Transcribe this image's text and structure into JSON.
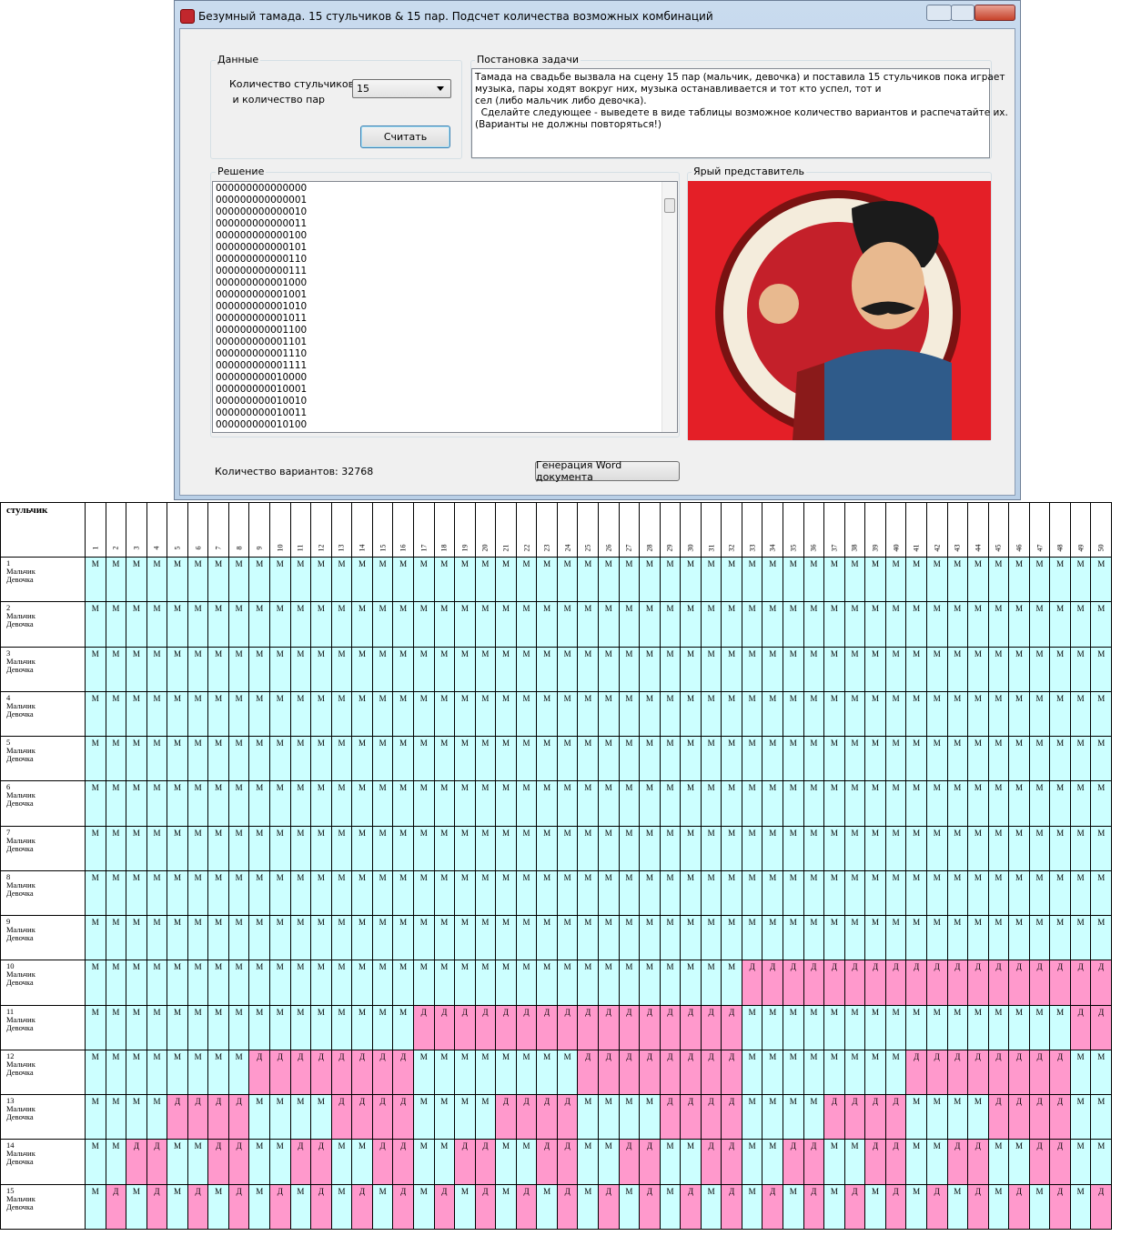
{
  "window": {
    "title": "Безумный тамада. 15 стульчиков & 15 пар. Подсчет количества возможных комбинаций",
    "data_group": {
      "title": "Данные",
      "label_lines": [
        "Количество стульчиков",
        " и количество пар"
      ],
      "combo_value": "15",
      "button": "Считать"
    },
    "task_group": {
      "title": "Постановка задачи",
      "lines": [
        "Тамада на свадьбе вызвала на сцену 15 пар (мальчик, девочка) и поставила 15 стульчиков пока играет",
        "музыка, пары ходят вокруг них, музыка останавливается и тот кто успел, тот и",
        "сел (либо мальчик либо девочка).",
        "  Сделайте следующее - выведете в виде таблицы возможное количество вариантов и распечатайте их.",
        "(Варианты не должны повторяться!)"
      ]
    },
    "solution_group": {
      "title": "Решение",
      "lines": [
        "000000000000000",
        "000000000000001",
        "000000000000010",
        "000000000000011",
        "000000000000100",
        "000000000000101",
        "000000000000110",
        "000000000000111",
        "000000000001000",
        "000000000001001",
        "000000000001010",
        "000000000001011",
        "000000000001100",
        "000000000001101",
        "000000000001110",
        "000000000001111",
        "000000000010000",
        "000000000010001",
        "000000000010010",
        "000000000010011",
        "000000000010100"
      ]
    },
    "image_group": {
      "title": "Ярый представитель"
    },
    "count_label": "Количество вариантов: 32768",
    "word_button": "Генерация Word документа"
  },
  "table": {
    "corner": "стульчик",
    "cell_colors": {
      "М": "#ccffff",
      "Д": "#ff99cc"
    },
    "columns": [
      1,
      2,
      3,
      4,
      5,
      6,
      7,
      8,
      9,
      10,
      11,
      12,
      13,
      14,
      15,
      16,
      17,
      18,
      19,
      20,
      21,
      22,
      23,
      24,
      25,
      26,
      27,
      28,
      29,
      30,
      31,
      32,
      33,
      34,
      35,
      36,
      37,
      38,
      39,
      40,
      41,
      42,
      43,
      44,
      45,
      46,
      47,
      48,
      49,
      50
    ],
    "rows": [
      {
        "number": 1,
        "lines": [
          "Мальчик",
          "Девочка"
        ],
        "cells": [
          "М",
          "М",
          "М",
          "М",
          "М",
          "М",
          "М",
          "М",
          "М",
          "М",
          "М",
          "М",
          "М",
          "М",
          "М",
          "М",
          "М",
          "М",
          "М",
          "М",
          "М",
          "М",
          "М",
          "М",
          "М",
          "М",
          "М",
          "М",
          "М",
          "М",
          "М",
          "М",
          "М",
          "М",
          "М",
          "М",
          "М",
          "М",
          "М",
          "М",
          "М",
          "М",
          "М",
          "М",
          "М",
          "М",
          "М",
          "М",
          "М",
          "М"
        ]
      },
      {
        "number": 2,
        "lines": [
          "Мальчик",
          "Девочка"
        ],
        "cells": [
          "М",
          "М",
          "М",
          "М",
          "М",
          "М",
          "М",
          "М",
          "М",
          "М",
          "М",
          "М",
          "М",
          "М",
          "М",
          "М",
          "М",
          "М",
          "М",
          "М",
          "М",
          "М",
          "М",
          "М",
          "М",
          "М",
          "М",
          "М",
          "М",
          "М",
          "М",
          "М",
          "М",
          "М",
          "М",
          "М",
          "М",
          "М",
          "М",
          "М",
          "М",
          "М",
          "М",
          "М",
          "М",
          "М",
          "М",
          "М",
          "М",
          "М"
        ]
      },
      {
        "number": 3,
        "lines": [
          "Мальчик",
          "Девочка"
        ],
        "cells": [
          "М",
          "М",
          "М",
          "М",
          "М",
          "М",
          "М",
          "М",
          "М",
          "М",
          "М",
          "М",
          "М",
          "М",
          "М",
          "М",
          "М",
          "М",
          "М",
          "М",
          "М",
          "М",
          "М",
          "М",
          "М",
          "М",
          "М",
          "М",
          "М",
          "М",
          "М",
          "М",
          "М",
          "М",
          "М",
          "М",
          "М",
          "М",
          "М",
          "М",
          "М",
          "М",
          "М",
          "М",
          "М",
          "М",
          "М",
          "М",
          "М",
          "М"
        ]
      },
      {
        "number": 4,
        "lines": [
          "Мальчик",
          "Девочка"
        ],
        "cells": [
          "М",
          "М",
          "М",
          "М",
          "М",
          "М",
          "М",
          "М",
          "М",
          "М",
          "М",
          "М",
          "М",
          "М",
          "М",
          "М",
          "М",
          "М",
          "М",
          "М",
          "М",
          "М",
          "М",
          "М",
          "М",
          "М",
          "М",
          "М",
          "М",
          "М",
          "М",
          "М",
          "М",
          "М",
          "М",
          "М",
          "М",
          "М",
          "М",
          "М",
          "М",
          "М",
          "М",
          "М",
          "М",
          "М",
          "М",
          "М",
          "М",
          "М"
        ]
      },
      {
        "number": 5,
        "lines": [
          "Мальчик",
          "Девочка"
        ],
        "cells": [
          "М",
          "М",
          "М",
          "М",
          "М",
          "М",
          "М",
          "М",
          "М",
          "М",
          "М",
          "М",
          "М",
          "М",
          "М",
          "М",
          "М",
          "М",
          "М",
          "М",
          "М",
          "М",
          "М",
          "М",
          "М",
          "М",
          "М",
          "М",
          "М",
          "М",
          "М",
          "М",
          "М",
          "М",
          "М",
          "М",
          "М",
          "М",
          "М",
          "М",
          "М",
          "М",
          "М",
          "М",
          "М",
          "М",
          "М",
          "М",
          "М",
          "М"
        ]
      },
      {
        "number": 6,
        "lines": [
          "Мальчик",
          "Девочка"
        ],
        "cells": [
          "М",
          "М",
          "М",
          "М",
          "М",
          "М",
          "М",
          "М",
          "М",
          "М",
          "М",
          "М",
          "М",
          "М",
          "М",
          "М",
          "М",
          "М",
          "М",
          "М",
          "М",
          "М",
          "М",
          "М",
          "М",
          "М",
          "М",
          "М",
          "М",
          "М",
          "М",
          "М",
          "М",
          "М",
          "М",
          "М",
          "М",
          "М",
          "М",
          "М",
          "М",
          "М",
          "М",
          "М",
          "М",
          "М",
          "М",
          "М",
          "М",
          "М"
        ]
      },
      {
        "number": 7,
        "lines": [
          "Мальчик",
          "Девочка"
        ],
        "cells": [
          "М",
          "М",
          "М",
          "М",
          "М",
          "М",
          "М",
          "М",
          "М",
          "М",
          "М",
          "М",
          "М",
          "М",
          "М",
          "М",
          "М",
          "М",
          "М",
          "М",
          "М",
          "М",
          "М",
          "М",
          "М",
          "М",
          "М",
          "М",
          "М",
          "М",
          "М",
          "М",
          "М",
          "М",
          "М",
          "М",
          "М",
          "М",
          "М",
          "М",
          "М",
          "М",
          "М",
          "М",
          "М",
          "М",
          "М",
          "М",
          "М",
          "М"
        ]
      },
      {
        "number": 8,
        "lines": [
          "Мальчик",
          "Девочка"
        ],
        "cells": [
          "М",
          "М",
          "М",
          "М",
          "М",
          "М",
          "М",
          "М",
          "М",
          "М",
          "М",
          "М",
          "М",
          "М",
          "М",
          "М",
          "М",
          "М",
          "М",
          "М",
          "М",
          "М",
          "М",
          "М",
          "М",
          "М",
          "М",
          "М",
          "М",
          "М",
          "М",
          "М",
          "М",
          "М",
          "М",
          "М",
          "М",
          "М",
          "М",
          "М",
          "М",
          "М",
          "М",
          "М",
          "М",
          "М",
          "М",
          "М",
          "М",
          "М"
        ]
      },
      {
        "number": 9,
        "lines": [
          "Мальчик",
          "Девочка"
        ],
        "cells": [
          "М",
          "М",
          "М",
          "М",
          "М",
          "М",
          "М",
          "М",
          "М",
          "М",
          "М",
          "М",
          "М",
          "М",
          "М",
          "М",
          "М",
          "М",
          "М",
          "М",
          "М",
          "М",
          "М",
          "М",
          "М",
          "М",
          "М",
          "М",
          "М",
          "М",
          "М",
          "М",
          "М",
          "М",
          "М",
          "М",
          "М",
          "М",
          "М",
          "М",
          "М",
          "М",
          "М",
          "М",
          "М",
          "М",
          "М",
          "М",
          "М",
          "М"
        ]
      },
      {
        "number": 10,
        "lines": [
          "Мальчик",
          "Девочка"
        ],
        "cells": [
          "М",
          "М",
          "М",
          "М",
          "М",
          "М",
          "М",
          "М",
          "М",
          "М",
          "М",
          "М",
          "М",
          "М",
          "М",
          "М",
          "М",
          "М",
          "М",
          "М",
          "М",
          "М",
          "М",
          "М",
          "М",
          "М",
          "М",
          "М",
          "М",
          "М",
          "М",
          "М",
          "Д",
          "Д",
          "Д",
          "Д",
          "Д",
          "Д",
          "Д",
          "Д",
          "Д",
          "Д",
          "Д",
          "Д",
          "Д",
          "Д",
          "Д",
          "Д",
          "Д",
          "Д"
        ]
      },
      {
        "number": 11,
        "lines": [
          "Мальчик",
          "Девочка"
        ],
        "cells": [
          "М",
          "М",
          "М",
          "М",
          "М",
          "М",
          "М",
          "М",
          "М",
          "М",
          "М",
          "М",
          "М",
          "М",
          "М",
          "М",
          "Д",
          "Д",
          "Д",
          "Д",
          "Д",
          "Д",
          "Д",
          "Д",
          "Д",
          "Д",
          "Д",
          "Д",
          "Д",
          "Д",
          "Д",
          "Д",
          "М",
          "М",
          "М",
          "М",
          "М",
          "М",
          "М",
          "М",
          "М",
          "М",
          "М",
          "М",
          "М",
          "М",
          "М",
          "М",
          "Д",
          "Д"
        ]
      },
      {
        "number": 12,
        "lines": [
          "Мальчик",
          "Девочка"
        ],
        "cells": [
          "М",
          "М",
          "М",
          "М",
          "М",
          "М",
          "М",
          "М",
          "Д",
          "Д",
          "Д",
          "Д",
          "Д",
          "Д",
          "Д",
          "Д",
          "М",
          "М",
          "М",
          "М",
          "М",
          "М",
          "М",
          "М",
          "Д",
          "Д",
          "Д",
          "Д",
          "Д",
          "Д",
          "Д",
          "Д",
          "М",
          "М",
          "М",
          "М",
          "М",
          "М",
          "М",
          "М",
          "Д",
          "Д",
          "Д",
          "Д",
          "Д",
          "Д",
          "Д",
          "Д",
          "М",
          "М"
        ]
      },
      {
        "number": 13,
        "lines": [
          "Мальчик",
          "Девочка"
        ],
        "cells": [
          "М",
          "М",
          "М",
          "М",
          "Д",
          "Д",
          "Д",
          "Д",
          "М",
          "М",
          "М",
          "М",
          "Д",
          "Д",
          "Д",
          "Д",
          "М",
          "М",
          "М",
          "М",
          "Д",
          "Д",
          "Д",
          "Д",
          "М",
          "М",
          "М",
          "М",
          "Д",
          "Д",
          "Д",
          "Д",
          "М",
          "М",
          "М",
          "М",
          "Д",
          "Д",
          "Д",
          "Д",
          "М",
          "М",
          "М",
          "М",
          "Д",
          "Д",
          "Д",
          "Д",
          "М",
          "М"
        ]
      },
      {
        "number": 14,
        "lines": [
          "Мальчик",
          "Девочка"
        ],
        "cells": [
          "М",
          "М",
          "Д",
          "Д",
          "М",
          "М",
          "Д",
          "Д",
          "М",
          "М",
          "Д",
          "Д",
          "М",
          "М",
          "Д",
          "Д",
          "М",
          "М",
          "Д",
          "Д",
          "М",
          "М",
          "Д",
          "Д",
          "М",
          "М",
          "Д",
          "Д",
          "М",
          "М",
          "Д",
          "Д",
          "М",
          "М",
          "Д",
          "Д",
          "М",
          "М",
          "Д",
          "Д",
          "М",
          "М",
          "Д",
          "Д",
          "М",
          "М",
          "Д",
          "Д",
          "М",
          "М"
        ]
      },
      {
        "number": 15,
        "lines": [
          "Мальчик",
          "Девочка"
        ],
        "cells": [
          "М",
          "Д",
          "М",
          "Д",
          "М",
          "Д",
          "М",
          "Д",
          "М",
          "Д",
          "М",
          "Д",
          "М",
          "Д",
          "М",
          "Д",
          "М",
          "Д",
          "М",
          "Д",
          "М",
          "Д",
          "М",
          "Д",
          "М",
          "Д",
          "М",
          "Д",
          "М",
          "Д",
          "М",
          "Д",
          "М",
          "Д",
          "М",
          "Д",
          "М",
          "Д",
          "М",
          "Д",
          "М",
          "Д",
          "М",
          "Д",
          "М",
          "Д",
          "М",
          "Д",
          "М",
          "Д"
        ]
      }
    ]
  }
}
